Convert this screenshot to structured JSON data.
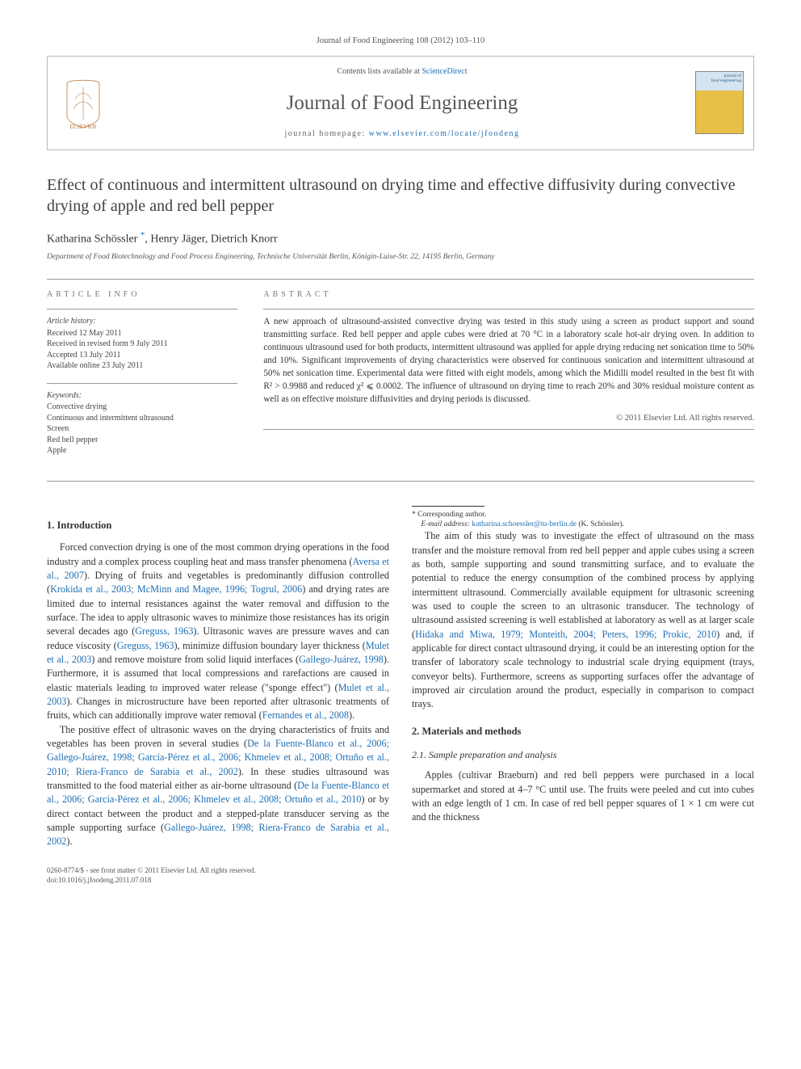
{
  "journal_ref": "Journal of Food Engineering 108 (2012) 103–110",
  "header": {
    "contents_prefix": "Contents lists available at ",
    "contents_link": "ScienceDirect",
    "journal_name": "Journal of Food Engineering",
    "homepage_prefix": "journal homepage: ",
    "homepage_link": "www.elsevier.com/locate/jfoodeng",
    "cover_label1": "journal of",
    "cover_label2": "food engineering",
    "colors": {
      "link_color": "#1f6fb5",
      "border_color": "#b8b8b8",
      "cover_top": "#d4e4f0",
      "cover_bottom": "#e8c048"
    }
  },
  "title": "Effect of continuous and intermittent ultrasound on drying time and effective diffusivity during convective drying of apple and red bell pepper",
  "authors_html": "Katharina Schössler <sup class=\"corr\" data-name=\"corresponding-marker\" data-interactable=\"true\">*</sup>, Henry Jäger, Dietrich Knorr",
  "affiliation": "Department of Food Biotechnology and Food Process Engineering, Technische Universität Berlin, Königin-Luise-Str. 22, 14195 Berlin, Germany",
  "info": {
    "heading_left": "ARTICLE INFO",
    "heading_right": "ABSTRACT",
    "history_label": "Article history:",
    "history": [
      "Received 12 May 2011",
      "Received in revised form 9 July 2011",
      "Accepted 13 July 2011",
      "Available online 23 July 2011"
    ],
    "keywords_label": "Keywords:",
    "keywords": [
      "Convective drying",
      "Continuous and intermittent ultrasound",
      "Screen",
      "Red bell pepper",
      "Apple"
    ]
  },
  "abstract": "A new approach of ultrasound-assisted convective drying was tested in this study using a screen as product support and sound transmitting surface. Red bell pepper and apple cubes were dried at 70 °C in a laboratory scale hot-air drying oven. In addition to continuous ultrasound used for both products, intermittent ultrasound was applied for apple drying reducing net sonication time to 50% and 10%. Significant improvements of drying characteristics were observed for continuous sonication and intermittent ultrasound at 50% net sonication time. Experimental data were fitted with eight models, among which the Midilli model resulted in the best fit with R² > 0.9988 and reduced χ² ⩽ 0.0002. The influence of ultrasound on drying time to reach 20% and 30% residual moisture content as well as on effective moisture diffusivities and drying periods is discussed.",
  "copyright": "© 2011 Elsevier Ltd. All rights reserved.",
  "sections": {
    "s1": "1. Introduction",
    "s2": "2. Materials and methods",
    "s21": "2.1. Sample preparation and analysis"
  },
  "body": {
    "p1a": "Forced convection drying is one of the most common drying operations in the food industry and a complex process coupling heat and mass transfer phenomena (",
    "c1": "Aversa et al., 2007",
    "p1b": "). Drying of fruits and vegetables is predominantly diffusion controlled (",
    "c2": "Krokida et al., 2003; McMinn and Magee, 1996; Togrul, 2006",
    "p1c": ") and drying rates are limited due to internal resistances against the water removal and diffusion to the surface. The idea to apply ultrasonic waves to minimize those resistances has its origin several decades ago (",
    "c3": "Greguss, 1963",
    "p1d": "). Ultrasonic waves are pressure waves and can reduce viscosity (",
    "c4": "Greguss, 1963",
    "p1e": "), minimize diffusion boundary layer thickness (",
    "c5": "Mulet et al., 2003",
    "p1f": ") and remove moisture from solid liquid interfaces (",
    "c6": "Gallego-Juárez, 1998",
    "p1g": "). Furthermore, it is assumed that local compressions and rarefactions are caused in elastic materials leading to improved water release (\"sponge effect\") (",
    "c7": "Mulet et al., 2003",
    "p1h": "). Changes in microstructure have been reported after ultrasonic treatments of fruits, which can additionally improve water removal (",
    "c8": "Fernandes et al., 2008",
    "p1i": ").",
    "p2a": "The positive effect of ultrasonic waves on the drying characteristics of fruits and vegetables has been proven in several studies (",
    "c9": "De la Fuente-Blanco et al., 2006; Gallego-Juárez, 1998; García-Pérez et al., 2006; Khmelev et al., 2008; Ortuño et al., 2010; Riera-Franco de Sarabia et al., 2002",
    "p2b": "). In these studies ultrasound was transmitted to the food material either as air-borne ultrasound (",
    "c10": "De la Fuente-Blanco et al., 2006; García-Pérez et al., 2006; ",
    "c10b": "Khmelev et al., 2008; Ortuño et al., 2010",
    "p2c": ") or by direct contact between the product and a stepped-plate transducer serving as the sample supporting surface (",
    "c11": "Gallego-Juárez, 1998; Riera-Franco de Sarabia et al., 2002",
    "p2d": ").",
    "p3a": "The aim of this study was to investigate the effect of ultrasound on the mass transfer and the moisture removal from red bell pepper and apple cubes using a screen as both, sample supporting and sound transmitting surface, and to evaluate the potential to reduce the energy consumption of the combined process by applying intermittent ultrasound. Commercially available equipment for ultrasonic screening was used to couple the screen to an ultrasonic transducer. The technology of ultrasound assisted screening is well established at laboratory as well as at larger scale (",
    "c12": "Hidaka and Miwa, 1979; Monteith, 2004; Peters, 1996; Prokic, 2010",
    "p3b": ") and, if applicable for direct contact ultrasound drying, it could be an interesting option for the transfer of laboratory scale technology to industrial scale drying equipment (trays, conveyor belts). Furthermore, screens as supporting surfaces offer the advantage of improved air circulation around the product, especially in comparison to compact trays.",
    "p4": "Apples (cultivar Braeburn) and red bell peppers were purchased in a local supermarket and stored at 4–7 °C until use. The fruits were peeled and cut into cubes with an edge length of 1 cm. In case of red bell pepper squares of 1 × 1 cm were cut and the thickness"
  },
  "footnote": {
    "corr": "* Corresponding author.",
    "email_label": "E-mail address: ",
    "email": "katharina.schoessler@tu-berlin.de",
    "email_suffix": " (K. Schössler)."
  },
  "footer": {
    "left1": "0260-8774/$ - see front matter © 2011 Elsevier Ltd. All rights reserved.",
    "left2": "doi:10.1016/j.jfoodeng.2011.07.018"
  }
}
